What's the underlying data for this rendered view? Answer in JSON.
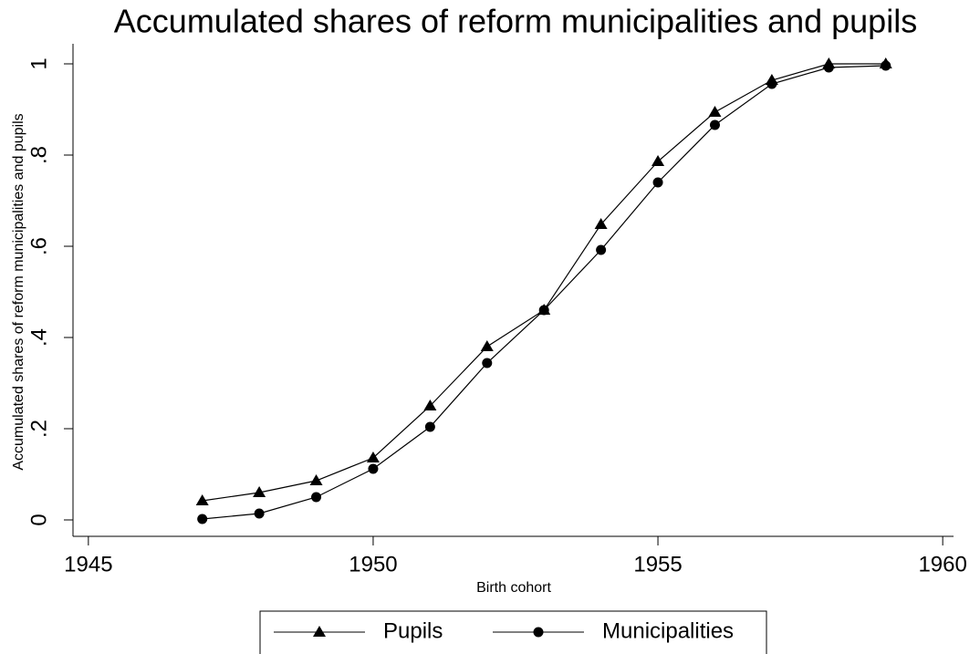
{
  "chart_data": {
    "type": "line",
    "title": "Accumulated shares of reform municipalities and pupils",
    "x_label": "Birth cohort",
    "y_label": "Accumulated shares of reform municipalities and pupils",
    "x": [
      1947,
      1948,
      1949,
      1950,
      1951,
      1952,
      1953,
      1954,
      1955,
      1956,
      1957,
      1958,
      1959
    ],
    "series": [
      {
        "name": "Pupils",
        "color": "#000000",
        "marker": "triangle",
        "values": [
          0.042,
          0.06,
          0.086,
          0.136,
          0.25,
          0.38,
          0.46,
          0.648,
          0.786,
          0.894,
          0.964,
          1.0,
          1.0
        ]
      },
      {
        "name": "Municipalities",
        "color": "#000000",
        "marker": "circle",
        "values": [
          0.002,
          0.014,
          0.05,
          0.112,
          0.204,
          0.344,
          0.46,
          0.592,
          0.74,
          0.866,
          0.956,
          0.992,
          0.996
        ]
      }
    ],
    "xlim": [
      1944.73,
      1960.19
    ],
    "xticks": [
      1945,
      1950,
      1955,
      1960
    ],
    "ylim": [
      -0.036,
      1.044
    ],
    "yticks": [
      0,
      {
        "value": 0.2,
        "label": ".2"
      },
      {
        "value": 0.4,
        "label": ".4"
      },
      {
        "value": 0.6,
        "label": ".6"
      },
      {
        "value": 0.8,
        "label": ".8"
      },
      1
    ],
    "grid": false,
    "legend": "bottom"
  }
}
